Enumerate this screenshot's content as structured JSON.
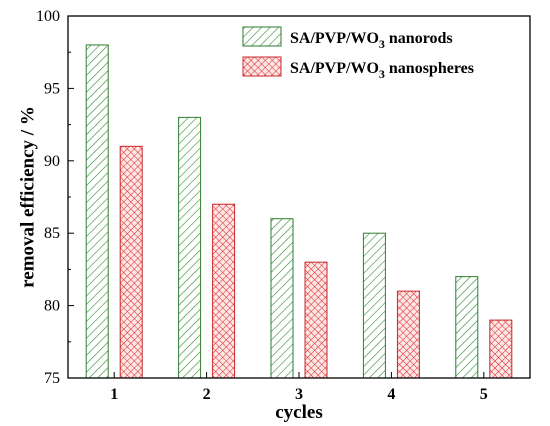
{
  "chart_data": {
    "type": "bar",
    "xlabel": "cycles",
    "ylabel": "removal efficiency / %",
    "ylim": [
      75,
      100
    ],
    "yticks": [
      75,
      80,
      85,
      90,
      95,
      100
    ],
    "categories": [
      "1",
      "2",
      "3",
      "4",
      "5"
    ],
    "series": [
      {
        "name": "SA/PVP/WO3 nanorods",
        "name_base": "SA/PVP/WO",
        "name_sub": "3",
        "name_tail": " nanorods",
        "values": [
          98,
          93,
          86,
          85,
          82
        ],
        "color": "#2e8b2e",
        "pattern": "diagonal-hatch"
      },
      {
        "name": "SA/PVP/WO3 nanospheres",
        "name_base": "SA/PVP/WO",
        "name_sub": "3",
        "name_tail": " nanospheres",
        "values": [
          91,
          87,
          83,
          81,
          79
        ],
        "color": "#e02020",
        "pattern": "cross-hatch"
      }
    ],
    "legend_position": "top-right",
    "grid": false
  }
}
